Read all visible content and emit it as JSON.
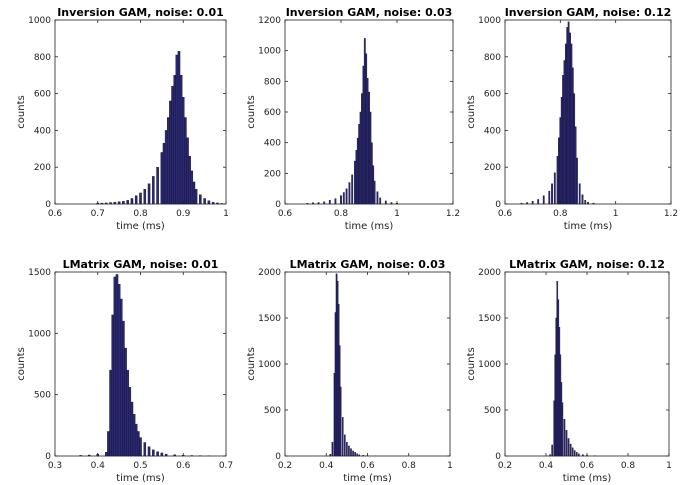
{
  "chart_data": [
    {
      "type": "bar",
      "title": "Inversion GAM, noise: 0.01",
      "xlabel": "time (ms)",
      "ylabel": "counts",
      "xlim": [
        0.6,
        1.0
      ],
      "ylim": [
        0,
        1000
      ],
      "xticks": [
        "0.6",
        "0.7",
        "0.8",
        "0.9",
        "1"
      ],
      "yticks": [
        "0",
        "200",
        "400",
        "600",
        "800",
        "1000"
      ],
      "grid": false,
      "bins": [
        [
          0.7,
          5
        ],
        [
          0.71,
          5
        ],
        [
          0.72,
          6
        ],
        [
          0.73,
          8
        ],
        [
          0.74,
          10
        ],
        [
          0.75,
          12
        ],
        [
          0.76,
          15
        ],
        [
          0.77,
          20
        ],
        [
          0.78,
          30
        ],
        [
          0.79,
          45
        ],
        [
          0.8,
          60
        ],
        [
          0.81,
          80
        ],
        [
          0.82,
          110
        ],
        [
          0.83,
          150
        ],
        [
          0.84,
          200
        ],
        [
          0.85,
          280
        ],
        [
          0.855,
          330
        ],
        [
          0.86,
          400
        ],
        [
          0.865,
          470
        ],
        [
          0.87,
          560
        ],
        [
          0.875,
          640
        ],
        [
          0.88,
          700
        ],
        [
          0.885,
          810
        ],
        [
          0.89,
          830
        ],
        [
          0.895,
          700
        ],
        [
          0.9,
          580
        ],
        [
          0.905,
          470
        ],
        [
          0.91,
          360
        ],
        [
          0.915,
          260
        ],
        [
          0.92,
          180
        ],
        [
          0.925,
          120
        ],
        [
          0.93,
          80
        ],
        [
          0.94,
          50
        ],
        [
          0.95,
          30
        ],
        [
          0.96,
          18
        ],
        [
          0.97,
          10
        ],
        [
          0.98,
          6
        ],
        [
          0.99,
          3
        ]
      ]
    },
    {
      "type": "bar",
      "title": "Inversion GAM, noise: 0.03",
      "xlabel": "time (ms)",
      "ylabel": "counts",
      "xlim": [
        0.6,
        1.2
      ],
      "ylim": [
        0,
        1200
      ],
      "xticks": [
        "0.6",
        "0.8",
        "1",
        "1.2"
      ],
      "yticks": [
        "0",
        "200",
        "400",
        "600",
        "800",
        "1000",
        "1200"
      ],
      "grid": false,
      "bins": [
        [
          0.68,
          5
        ],
        [
          0.7,
          8
        ],
        [
          0.72,
          10
        ],
        [
          0.74,
          15
        ],
        [
          0.76,
          25
        ],
        [
          0.78,
          35
        ],
        [
          0.8,
          55
        ],
        [
          0.81,
          75
        ],
        [
          0.82,
          100
        ],
        [
          0.83,
          140
        ],
        [
          0.84,
          190
        ],
        [
          0.85,
          280
        ],
        [
          0.855,
          350
        ],
        [
          0.86,
          430
        ],
        [
          0.865,
          520
        ],
        [
          0.87,
          600
        ],
        [
          0.875,
          720
        ],
        [
          0.88,
          900
        ],
        [
          0.885,
          1080
        ],
        [
          0.89,
          980
        ],
        [
          0.895,
          820
        ],
        [
          0.9,
          730
        ],
        [
          0.905,
          600
        ],
        [
          0.91,
          400
        ],
        [
          0.915,
          250
        ],
        [
          0.92,
          150
        ],
        [
          0.93,
          80
        ],
        [
          0.94,
          40
        ],
        [
          0.96,
          20
        ],
        [
          0.98,
          10
        ],
        [
          1.0,
          5
        ]
      ]
    },
    {
      "type": "bar",
      "title": "Inversion GAM, noise: 0.12",
      "xlabel": "time (ms)",
      "ylabel": "counts",
      "xlim": [
        0.6,
        1.2
      ],
      "ylim": [
        0,
        1000
      ],
      "xticks": [
        "0.6",
        "0.8",
        "1",
        "1.2"
      ],
      "yticks": [
        "0",
        "200",
        "400",
        "600",
        "800",
        "1000"
      ],
      "grid": false,
      "bins": [
        [
          0.66,
          5
        ],
        [
          0.68,
          8
        ],
        [
          0.7,
          15
        ],
        [
          0.72,
          25
        ],
        [
          0.74,
          45
        ],
        [
          0.76,
          70
        ],
        [
          0.77,
          110
        ],
        [
          0.78,
          170
        ],
        [
          0.79,
          260
        ],
        [
          0.795,
          360
        ],
        [
          0.8,
          470
        ],
        [
          0.805,
          580
        ],
        [
          0.81,
          700
        ],
        [
          0.815,
          780
        ],
        [
          0.82,
          870
        ],
        [
          0.825,
          960
        ],
        [
          0.83,
          990
        ],
        [
          0.835,
          930
        ],
        [
          0.84,
          870
        ],
        [
          0.845,
          740
        ],
        [
          0.85,
          600
        ],
        [
          0.855,
          420
        ],
        [
          0.86,
          250
        ],
        [
          0.87,
          110
        ],
        [
          0.88,
          50
        ],
        [
          0.89,
          20
        ],
        [
          0.9,
          10
        ],
        [
          0.92,
          5
        ]
      ]
    },
    {
      "type": "bar",
      "title": "LMatrix GAM, noise: 0.01",
      "xlabel": "time (ms)",
      "ylabel": "counts",
      "xlim": [
        0.3,
        0.7
      ],
      "ylim": [
        0,
        1500
      ],
      "xticks": [
        "0.3",
        "0.4",
        "0.5",
        "0.6",
        "0.7"
      ],
      "yticks": [
        "0",
        "500",
        "1000",
        "1500"
      ],
      "grid": false,
      "bins": [
        [
          0.36,
          5
        ],
        [
          0.38,
          8
        ],
        [
          0.4,
          15
        ],
        [
          0.42,
          30
        ],
        [
          0.425,
          200
        ],
        [
          0.43,
          700
        ],
        [
          0.435,
          1150
        ],
        [
          0.44,
          1460
        ],
        [
          0.445,
          1480
        ],
        [
          0.45,
          1400
        ],
        [
          0.455,
          1280
        ],
        [
          0.46,
          1100
        ],
        [
          0.465,
          880
        ],
        [
          0.47,
          700
        ],
        [
          0.475,
          560
        ],
        [
          0.48,
          440
        ],
        [
          0.485,
          340
        ],
        [
          0.49,
          260
        ],
        [
          0.495,
          200
        ],
        [
          0.5,
          150
        ],
        [
          0.51,
          110
        ],
        [
          0.52,
          75
        ],
        [
          0.53,
          50
        ],
        [
          0.54,
          35
        ],
        [
          0.55,
          25
        ],
        [
          0.56,
          15
        ],
        [
          0.58,
          10
        ],
        [
          0.6,
          6
        ],
        [
          0.62,
          4
        ],
        [
          0.64,
          3
        ],
        [
          0.66,
          2
        ]
      ]
    },
    {
      "type": "bar",
      "title": "LMatrix GAM, noise: 0.03",
      "xlabel": "time (ms)",
      "ylabel": "counts",
      "xlim": [
        0.2,
        1.0
      ],
      "ylim": [
        0,
        2000
      ],
      "xticks": [
        "0.2",
        "0.4",
        "0.6",
        "0.8",
        "1"
      ],
      "yticks": [
        "0",
        "500",
        "1000",
        "1500",
        "2000"
      ],
      "grid": false,
      "bins": [
        [
          0.42,
          20
        ],
        [
          0.43,
          150
        ],
        [
          0.44,
          900
        ],
        [
          0.445,
          1560
        ],
        [
          0.45,
          1980
        ],
        [
          0.455,
          1900
        ],
        [
          0.46,
          1650
        ],
        [
          0.465,
          1200
        ],
        [
          0.47,
          750
        ],
        [
          0.48,
          420
        ],
        [
          0.49,
          230
        ],
        [
          0.5,
          150
        ],
        [
          0.51,
          110
        ],
        [
          0.52,
          80
        ],
        [
          0.53,
          55
        ],
        [
          0.54,
          40
        ],
        [
          0.55,
          25
        ],
        [
          0.56,
          15
        ],
        [
          0.58,
          8
        ],
        [
          0.6,
          5
        ],
        [
          0.64,
          3
        ]
      ]
    },
    {
      "type": "bar",
      "title": "LMatrix GAM, noise: 0.12",
      "xlabel": "time (ms)",
      "ylabel": "counts",
      "xlim": [
        0.2,
        1.0
      ],
      "ylim": [
        0,
        2000
      ],
      "xticks": [
        "0.2",
        "0.4",
        "0.6",
        "0.8",
        "1"
      ],
      "yticks": [
        "0",
        "500",
        "1000",
        "1500",
        "2000"
      ],
      "grid": false,
      "bins": [
        [
          0.42,
          15
        ],
        [
          0.43,
          120
        ],
        [
          0.44,
          600
        ],
        [
          0.445,
          1100
        ],
        [
          0.45,
          1500
        ],
        [
          0.455,
          1900
        ],
        [
          0.46,
          1700
        ],
        [
          0.465,
          1400
        ],
        [
          0.47,
          1100
        ],
        [
          0.475,
          800
        ],
        [
          0.48,
          580
        ],
        [
          0.49,
          400
        ],
        [
          0.5,
          280
        ],
        [
          0.51,
          190
        ],
        [
          0.52,
          130
        ],
        [
          0.53,
          90
        ],
        [
          0.54,
          60
        ],
        [
          0.55,
          40
        ],
        [
          0.56,
          25
        ],
        [
          0.58,
          15
        ],
        [
          0.6,
          8
        ],
        [
          0.64,
          4
        ]
      ]
    }
  ],
  "colors": {
    "bar_fill": "#2a2870",
    "bar_edge": "#141236",
    "axis": "#222222"
  }
}
